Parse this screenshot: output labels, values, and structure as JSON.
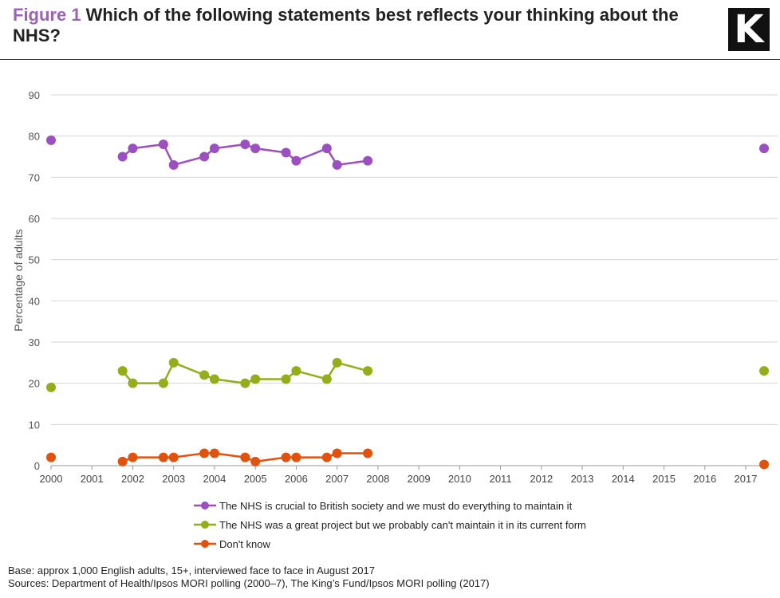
{
  "header": {
    "figure_label": "Figure 1",
    "title": "Which of the following statements best reflects your thinking about the NHS?",
    "logo_letter": "K"
  },
  "chart_data": {
    "type": "line",
    "title": "Which of the following statements best reflects your thinking about the NHS?",
    "xlabel": "",
    "ylabel": "Percentage of adults",
    "xlim": [
      2000,
      2017.5
    ],
    "ylim": [
      0,
      90
    ],
    "xticks": [
      2000,
      2001,
      2002,
      2003,
      2004,
      2005,
      2006,
      2007,
      2008,
      2009,
      2010,
      2011,
      2012,
      2013,
      2014,
      2015,
      2016,
      2017
    ],
    "yticks": [
      0,
      10,
      20,
      30,
      40,
      50,
      60,
      70,
      80,
      90
    ],
    "grid": true,
    "legend_position": "bottom",
    "series": [
      {
        "name": "The NHS is crucial to British society and we must do everything to maintain it",
        "color": "#9c4fbf",
        "isolated_points": [
          [
            2000,
            79
          ],
          [
            2017.45,
            77
          ]
        ],
        "points": [
          [
            2001.75,
            75
          ],
          [
            2002,
            77
          ],
          [
            2002.75,
            78
          ],
          [
            2003,
            73
          ],
          [
            2003.75,
            75
          ],
          [
            2004,
            77
          ],
          [
            2004.75,
            78
          ],
          [
            2005,
            77
          ],
          [
            2005.75,
            76
          ],
          [
            2006,
            74
          ],
          [
            2006.75,
            77
          ],
          [
            2007,
            73
          ],
          [
            2007.75,
            74
          ]
        ]
      },
      {
        "name": "The NHS was a great project but we probably  can't maintain it in its current form",
        "color": "#95ad1a",
        "isolated_points": [
          [
            2000,
            19
          ],
          [
            2017.45,
            23
          ]
        ],
        "points": [
          [
            2001.75,
            23
          ],
          [
            2002,
            20
          ],
          [
            2002.75,
            20
          ],
          [
            2003,
            25
          ],
          [
            2003.75,
            22
          ],
          [
            2004,
            21
          ],
          [
            2004.75,
            20
          ],
          [
            2005,
            21
          ],
          [
            2005.75,
            21
          ],
          [
            2006,
            23
          ],
          [
            2006.75,
            21
          ],
          [
            2007,
            25
          ],
          [
            2007.75,
            23
          ]
        ]
      },
      {
        "name": "Don't know",
        "color": "#e2520f",
        "isolated_points": [
          [
            2000,
            2
          ],
          [
            2017.45,
            0.3
          ]
        ],
        "points": [
          [
            2001.75,
            1
          ],
          [
            2002,
            2
          ],
          [
            2002.75,
            2
          ],
          [
            2003,
            2
          ],
          [
            2003.75,
            3
          ],
          [
            2004,
            3
          ],
          [
            2004.75,
            2
          ],
          [
            2005,
            1
          ],
          [
            2005.75,
            2
          ],
          [
            2006,
            2
          ],
          [
            2006.75,
            2
          ],
          [
            2007,
            3
          ],
          [
            2007.75,
            3
          ]
        ]
      }
    ]
  },
  "notes": {
    "base": "Base: approx 1,000 English adults, 15+, interviewed face to face in August 2017",
    "sources": "Sources: Department of Health/Ipsos MORI polling (2000–7), The King’s Fund/Ipsos MORI polling (2017)"
  }
}
